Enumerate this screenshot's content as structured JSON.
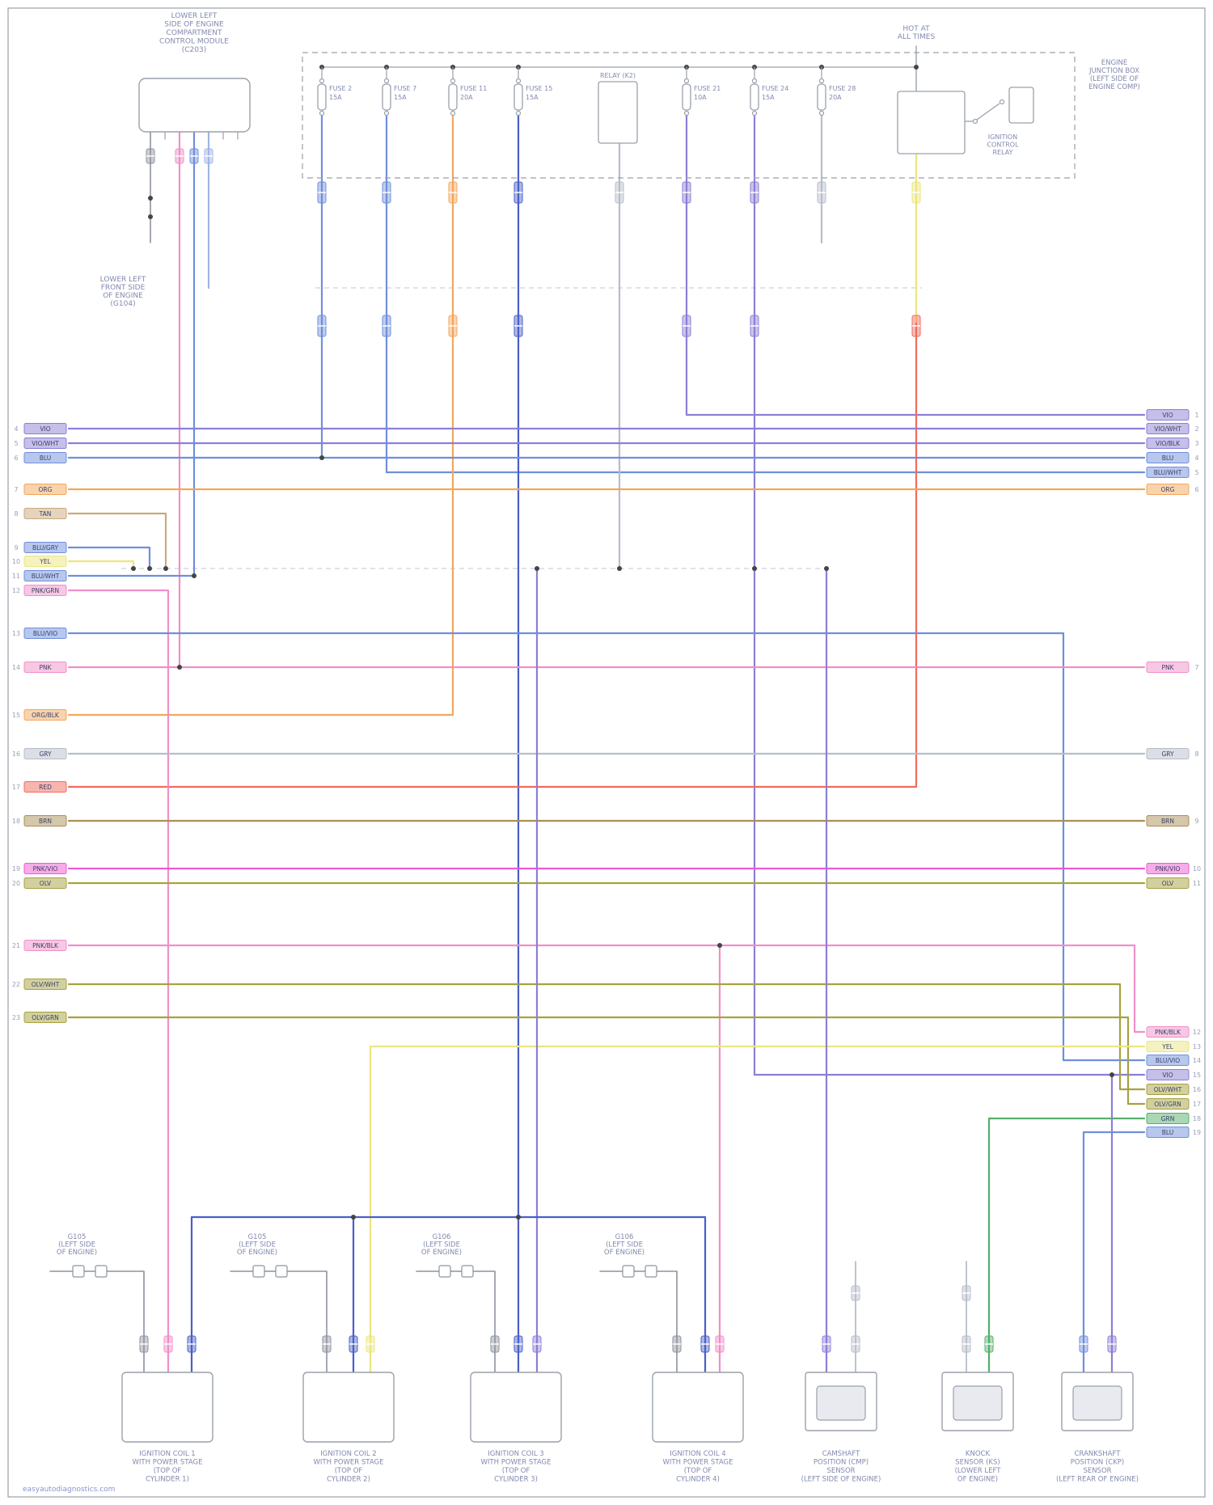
{
  "page": {
    "watermark": "easyautodiagnostics.com"
  },
  "palette": {
    "violet": "#8b7fd6",
    "blue": "#6f8fdc",
    "darkblue": "#4a5fc8",
    "lightblue": "#9fb4e8",
    "orange": "#f2a75c",
    "tan": "#c9aa7c",
    "yellow": "#ece57f",
    "pink": "#f08fc8",
    "magenta": "#ef58d2",
    "red": "#f26b5e",
    "gray": "#b7bdc9",
    "graydark": "#8d939e",
    "brown": "#a98f55",
    "olive": "#a7a23f",
    "green": "#55b06a",
    "line": "#9aa1ab",
    "text": "#8289ae",
    "dot": "#444444"
  },
  "top_left_module": {
    "label": [
      "LOWER LEFT",
      "SIDE OF ENGINE",
      "COMPARTMENT",
      "CONTROL MODULE",
      "(C203)"
    ]
  },
  "ground_note": {
    "label": [
      "LOWER LEFT",
      "FRONT SIDE",
      "OF ENGINE",
      "(G104)"
    ]
  },
  "power_box": {
    "hot_label": [
      "HOT AT",
      "ALL TIMES"
    ],
    "box_label": [
      "ENGINE",
      "JUNCTION BOX",
      "(LEFT SIDE OF",
      "ENGINE COMP)"
    ],
    "relay_label": "RELAY (K2)",
    "ign_relay_label": [
      "IGNITION",
      "CONTROL",
      "RELAY"
    ],
    "fuses": [
      {
        "name": "FUSE 2",
        "amps": "15A"
      },
      {
        "name": "FUSE 7",
        "amps": "15A"
      },
      {
        "name": "FUSE 11",
        "amps": "20A"
      },
      {
        "name": "FUSE 15",
        "amps": "15A"
      },
      {
        "name": "FUSE 21",
        "amps": "10A"
      },
      {
        "name": "FUSE 24",
        "amps": "15A"
      },
      {
        "name": "FUSE 28",
        "amps": "20A"
      }
    ]
  },
  "left_edge": [
    {
      "pin": "4",
      "code": "VIO",
      "color": "violet"
    },
    {
      "pin": "5",
      "code": "VIO/WHT",
      "color": "violet"
    },
    {
      "pin": "6",
      "code": "BLU",
      "color": "blue"
    },
    {
      "pin": "7",
      "code": "ORG",
      "color": "orange"
    },
    {
      "pin": "8",
      "code": "TAN",
      "color": "tan"
    },
    {
      "pin": "9",
      "code": "BLU/GRY",
      "color": "blue"
    },
    {
      "pin": "10",
      "code": "YEL",
      "color": "yellow"
    },
    {
      "pin": "11",
      "code": "BLU/WHT",
      "color": "blue"
    },
    {
      "pin": "12",
      "code": "PNK/GRN",
      "color": "pink"
    },
    {
      "pin": "13",
      "code": "BLU/VIO",
      "color": "blue"
    },
    {
      "pin": "14",
      "code": "PNK",
      "color": "pink"
    },
    {
      "pin": "15",
      "code": "ORG/BLK",
      "color": "orange"
    },
    {
      "pin": "16",
      "code": "GRY",
      "color": "gray"
    },
    {
      "pin": "17",
      "code": "RED",
      "color": "red"
    },
    {
      "pin": "18",
      "code": "BRN",
      "color": "brown"
    },
    {
      "pin": "19",
      "code": "PNK/VIO",
      "color": "magenta"
    },
    {
      "pin": "20",
      "code": "OLV",
      "color": "olive"
    },
    {
      "pin": "21",
      "code": "PNK/BLK",
      "color": "pink"
    },
    {
      "pin": "22",
      "code": "OLV/WHT",
      "color": "olive"
    },
    {
      "pin": "23",
      "code": "OLV/GRN",
      "color": "olive"
    }
  ],
  "right_edge": [
    {
      "pin": "1",
      "code": "VIO",
      "color": "violet"
    },
    {
      "pin": "2",
      "code": "VIO/WHT",
      "color": "violet"
    },
    {
      "pin": "3",
      "code": "VIO/BLK",
      "color": "violet"
    },
    {
      "pin": "4",
      "code": "BLU",
      "color": "blue"
    },
    {
      "pin": "5",
      "code": "BLU/WHT",
      "color": "blue"
    },
    {
      "pin": "6",
      "code": "ORG",
      "color": "orange"
    },
    {
      "pin": "7",
      "code": "PNK",
      "color": "pink"
    },
    {
      "pin": "8",
      "code": "GRY",
      "color": "gray"
    },
    {
      "pin": "9",
      "code": "BRN",
      "color": "brown"
    },
    {
      "pin": "10",
      "code": "PNK/VIO",
      "color": "magenta"
    },
    {
      "pin": "11",
      "code": "OLV",
      "color": "olive"
    },
    {
      "pin": "12",
      "code": "PNK/BLK",
      "color": "pink"
    },
    {
      "pin": "13",
      "code": "YEL",
      "color": "yellow"
    },
    {
      "pin": "14",
      "code": "BLU/VIO",
      "color": "blue"
    },
    {
      "pin": "15",
      "code": "VIO",
      "color": "violet"
    },
    {
      "pin": "16",
      "code": "OLV/WHT",
      "color": "olive"
    },
    {
      "pin": "17",
      "code": "OLV/GRN",
      "color": "olive"
    },
    {
      "pin": "18",
      "code": "GRN",
      "color": "green"
    },
    {
      "pin": "19",
      "code": "BLU",
      "color": "blue"
    }
  ],
  "grounds": [
    {
      "label": [
        "G105",
        "(LEFT SIDE",
        "OF ENGINE)"
      ]
    },
    {
      "label": [
        "G105",
        "(LEFT SIDE",
        "OF ENGINE)"
      ]
    },
    {
      "label": [
        "G106",
        "(LEFT SIDE",
        "OF ENGINE)"
      ]
    },
    {
      "label": [
        "G106",
        "(LEFT SIDE",
        "OF ENGINE)"
      ]
    }
  ],
  "components": [
    {
      "name": [
        "IGNITION COIL 1",
        "WITH POWER STAGE",
        "(TOP OF",
        "CYLINDER 1)"
      ]
    },
    {
      "name": [
        "IGNITION COIL 2",
        "WITH POWER STAGE",
        "(TOP OF",
        "CYLINDER 2)"
      ]
    },
    {
      "name": [
        "IGNITION COIL 3",
        "WITH POWER STAGE",
        "(TOP OF",
        "CYLINDER 3)"
      ]
    },
    {
      "name": [
        "IGNITION COIL 4",
        "WITH POWER STAGE",
        "(TOP OF",
        "CYLINDER 4)"
      ]
    },
    {
      "name": [
        "CAMSHAFT",
        "POSITION (CMP)",
        "SENSOR",
        "(LEFT SIDE OF ENGINE)"
      ]
    },
    {
      "name": [
        "KNOCK",
        "SENSOR (KS)",
        "(LOWER LEFT",
        "OF ENGINE)"
      ]
    },
    {
      "name": [
        "CRANKSHAFT",
        "POSITION (CKP)",
        "SENSOR",
        "(LEFT REAR OF ENGINE)"
      ]
    }
  ]
}
